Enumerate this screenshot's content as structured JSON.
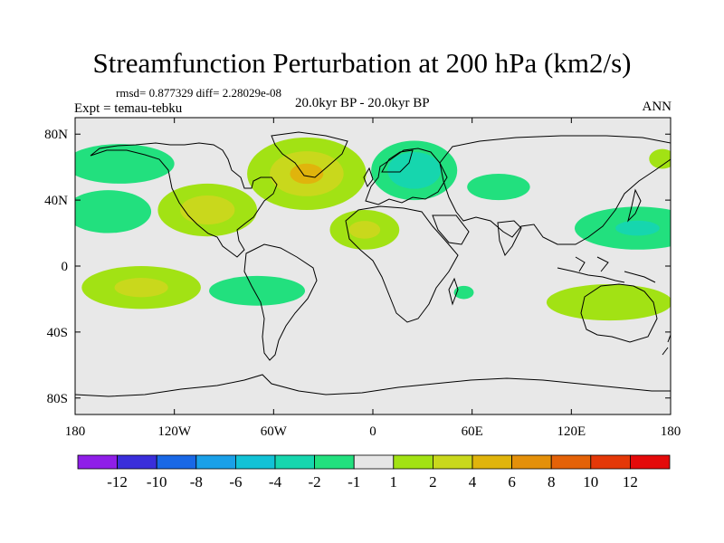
{
  "header": {
    "title": "Streamfunction Perturbation at 200 hPa (km2/s)",
    "stats": "rmsd= 0.877329 diff= 2.28029e-08",
    "expt": "Expt = temau-tebku",
    "period": "20.0kyr BP - 20.0kyr BP",
    "season": "ANN"
  },
  "chart_data": {
    "type": "heatmap",
    "title": "Streamfunction Perturbation at 200 hPa (km2/s)",
    "xlabel": "",
    "ylabel": "",
    "xlim": [
      -180,
      180
    ],
    "ylim": [
      -90,
      90
    ],
    "x_ticks": [
      {
        "value": -180,
        "label": "180"
      },
      {
        "value": -120,
        "label": "120W"
      },
      {
        "value": -60,
        "label": "60W"
      },
      {
        "value": 0,
        "label": "0"
      },
      {
        "value": 60,
        "label": "60E"
      },
      {
        "value": 120,
        "label": "120E"
      },
      {
        "value": 180,
        "label": "180"
      }
    ],
    "y_ticks": [
      {
        "value": 80,
        "label": "80N"
      },
      {
        "value": 40,
        "label": "40N"
      },
      {
        "value": 0,
        "label": "0"
      },
      {
        "value": -40,
        "label": "40S"
      },
      {
        "value": -80,
        "label": "80S"
      }
    ],
    "colorbar": {
      "levels": [
        "-12",
        "-10",
        "-8",
        "-6",
        "-4",
        "-2",
        "-1",
        "1",
        "2",
        "4",
        "6",
        "8",
        "10",
        "12"
      ],
      "colors": [
        "#8f1ee8",
        "#3a2edb",
        "#1968e6",
        "#1aa0e8",
        "#12c2d6",
        "#16d6ae",
        "#22e07e",
        "#e6e6e6",
        "#a2e214",
        "#c9d81c",
        "#e0b40c",
        "#e4900a",
        "#e46208",
        "#e43808",
        "#e40a0a"
      ]
    },
    "anomalies": [
      {
        "lon": -40,
        "lat": 56,
        "rx": 36,
        "ry": 22,
        "levels": [
          {
            "color": "#a2e214",
            "scale": 1.0
          },
          {
            "color": "#c9d81c",
            "scale": 0.62
          },
          {
            "color": "#e0b40c",
            "scale": 0.28
          }
        ]
      },
      {
        "lon": -100,
        "lat": 34,
        "rx": 30,
        "ry": 16,
        "levels": [
          {
            "color": "#a2e214",
            "scale": 1.0
          },
          {
            "color": "#c9d81c",
            "scale": 0.55
          }
        ]
      },
      {
        "lon": -5,
        "lat": 22,
        "rx": 21,
        "ry": 12,
        "levels": [
          {
            "color": "#a2e214",
            "scale": 1.0
          },
          {
            "color": "#c9d81c",
            "scale": 0.45
          }
        ]
      },
      {
        "lon": -140,
        "lat": -13,
        "rx": 36,
        "ry": 13,
        "levels": [
          {
            "color": "#a2e214",
            "scale": 1.0
          },
          {
            "color": "#c9d81c",
            "scale": 0.45
          }
        ]
      },
      {
        "lon": 143,
        "lat": -22,
        "rx": 38,
        "ry": 11,
        "levels": [
          {
            "color": "#a2e214",
            "scale": 1.0
          }
        ]
      },
      {
        "lon": 175,
        "lat": 65,
        "rx": 8,
        "ry": 6,
        "levels": [
          {
            "color": "#a2e214",
            "scale": 1.0
          }
        ]
      },
      {
        "lon": -153,
        "lat": 62,
        "rx": 33,
        "ry": 12,
        "levels": [
          {
            "color": "#22e07e",
            "scale": 1.0
          }
        ]
      },
      {
        "lon": -160,
        "lat": 33,
        "rx": 26,
        "ry": 13,
        "levels": [
          {
            "color": "#22e07e",
            "scale": 1.0
          }
        ]
      },
      {
        "lon": 25,
        "lat": 58,
        "rx": 26,
        "ry": 18,
        "levels": [
          {
            "color": "#22e07e",
            "scale": 1.0
          },
          {
            "color": "#16d6ae",
            "scale": 0.62
          }
        ]
      },
      {
        "lon": 76,
        "lat": 48,
        "rx": 19,
        "ry": 8,
        "levels": [
          {
            "color": "#22e07e",
            "scale": 1.0
          }
        ]
      },
      {
        "lon": 160,
        "lat": 23,
        "rx": 38,
        "ry": 13,
        "levels": [
          {
            "color": "#22e07e",
            "scale": 1.0
          },
          {
            "color": "#16d6ae",
            "scale": 0.35
          }
        ]
      },
      {
        "lon": -70,
        "lat": -15,
        "rx": 29,
        "ry": 9,
        "levels": [
          {
            "color": "#22e07e",
            "scale": 1.0
          }
        ]
      },
      {
        "lon": 55,
        "lat": -16,
        "rx": 6,
        "ry": 4,
        "levels": [
          {
            "color": "#22e07e",
            "scale": 1.0
          }
        ]
      }
    ]
  }
}
